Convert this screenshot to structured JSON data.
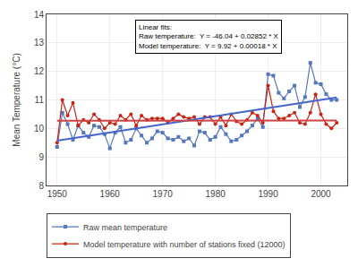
{
  "chart_data": {
    "type": "line",
    "y_label": "Mean Temperature (°C)",
    "x": [
      1950,
      1951,
      1952,
      1953,
      1954,
      1955,
      1956,
      1957,
      1958,
      1959,
      1960,
      1961,
      1962,
      1963,
      1964,
      1965,
      1966,
      1967,
      1968,
      1969,
      1970,
      1971,
      1972,
      1973,
      1974,
      1975,
      1976,
      1977,
      1978,
      1979,
      1980,
      1981,
      1982,
      1983,
      1984,
      1985,
      1986,
      1987,
      1988,
      1989,
      1990,
      1991,
      1992,
      1993,
      1994,
      1995,
      1996,
      1997,
      1998,
      1999,
      2000,
      2001,
      2002,
      2003
    ],
    "series": [
      {
        "name": "Raw mean temperature",
        "color": "#5577bb",
        "marker": "square",
        "line_style": "solid",
        "values": [
          9.35,
          10.55,
          10.15,
          9.6,
          10.1,
          9.85,
          9.7,
          10.1,
          10.05,
          9.8,
          9.3,
          9.85,
          10.05,
          9.5,
          9.6,
          10.0,
          9.75,
          9.5,
          9.65,
          9.9,
          9.85,
          9.65,
          9.6,
          9.7,
          9.55,
          9.65,
          9.4,
          9.9,
          9.85,
          9.6,
          9.7,
          10.05,
          9.8,
          9.55,
          9.6,
          9.75,
          9.9,
          10.1,
          10.35,
          10.05,
          11.9,
          11.85,
          11.25,
          11.05,
          11.3,
          11.5,
          10.75,
          11.1,
          12.3,
          11.6,
          11.55,
          11.2,
          11.0,
          11.0
        ]
      },
      {
        "name": "Model temperature with number of stations fixed (12000)",
        "color": "#cc2211",
        "marker": "circle",
        "line_style": "solid",
        "values": [
          9.5,
          11.0,
          10.45,
          10.9,
          10.1,
          10.3,
          10.2,
          10.5,
          10.3,
          10.0,
          10.2,
          10.15,
          10.45,
          10.3,
          10.5,
          10.1,
          10.45,
          10.3,
          10.35,
          10.35,
          10.35,
          10.2,
          10.35,
          10.5,
          10.4,
          10.35,
          10.4,
          10.15,
          10.4,
          10.4,
          10.15,
          10.4,
          10.1,
          10.5,
          10.25,
          10.15,
          10.3,
          10.55,
          10.45,
          10.2,
          11.5,
          10.6,
          10.35,
          10.35,
          10.45,
          10.55,
          10.2,
          10.15,
          10.55,
          11.2,
          10.5,
          10.15,
          10.0,
          10.2
        ]
      },
      {
        "color": "#4466cc",
        "marker": "none",
        "line_style": "solid",
        "x": [
          1950,
          2003
        ],
        "values": [
          9.574,
          11.08556
        ]
      },
      {
        "color": "#cc4444",
        "marker": "none",
        "line_style": "solid",
        "x": [
          1950,
          2003
        ],
        "values": [
          10.271,
          10.28054
        ]
      }
    ],
    "xlim": [
      1948,
      2005
    ],
    "ylim": [
      8,
      14
    ],
    "xticks": [
      1950,
      1960,
      1970,
      1980,
      1990,
      2000
    ],
    "yticks": [
      8,
      9,
      10,
      11,
      12,
      13,
      14
    ],
    "annotation": "Linear fits:\nRaw temperature:  Y = -46.04 + 0.02852 * X\nModel temperature:  Y = 9.92 + 0.00018 * X",
    "grid": true,
    "legend": "bottom"
  }
}
